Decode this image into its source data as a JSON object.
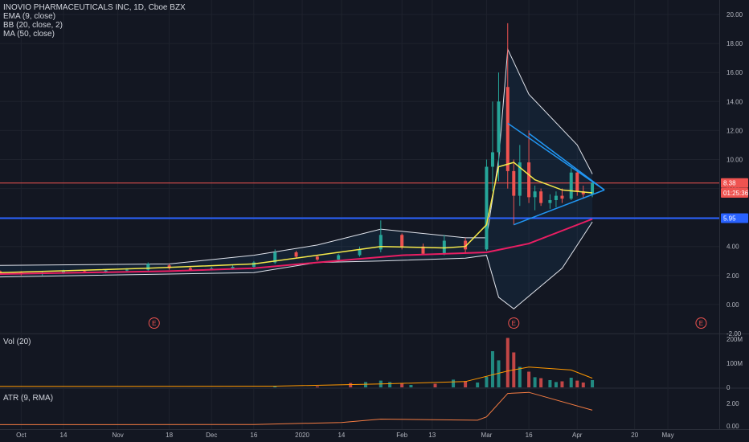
{
  "main_pane": {
    "title": "INOVIO PHARMACEUTICALS INC, 1D, Cboe BZX",
    "indicators": [
      "EMA (9, close)",
      "BB (20, close, 2)",
      "MA (50, close)"
    ],
    "price_badges": [
      {
        "label": "8.38",
        "value": 8.38,
        "color": "#ef5350"
      },
      {
        "label": "01:25:36",
        "value": 7.7,
        "color": "#ef5350"
      },
      {
        "label": "5.95",
        "value": 5.95,
        "color": "#2962ff"
      }
    ],
    "earnings_marker": "E"
  },
  "volume_pane": {
    "title": "Vol (20)"
  },
  "atr_pane": {
    "title": "ATR (9, RMA)"
  },
  "chart_data": [
    {
      "type": "candlestick",
      "title": "INOVIO PHARMACEUTICALS INC, 1D, Cboe BZX",
      "y_ticks": [
        "20.00",
        "18.00",
        "16.00",
        "14.00",
        "12.00",
        "10.00",
        "8.00",
        "6.00",
        "4.00",
        "2.00",
        "0.00",
        "-2.00"
      ],
      "ylim": [
        -2,
        21
      ],
      "x_ticks": [
        "Oct",
        "14",
        "Nov",
        "18",
        "Dec",
        "16",
        "2020",
        "14",
        "Feb",
        "13",
        "Mar",
        "16",
        "Apr",
        "20",
        "May"
      ],
      "x_dates": [
        "2019-09-30",
        "2019-10-14",
        "2019-11-01",
        "2019-11-18",
        "2019-12-02",
        "2019-12-16",
        "2020-01-01",
        "2020-01-14",
        "2020-02-03",
        "2020-02-13",
        "2020-03-02",
        "2020-03-16",
        "2020-04-01",
        "2020-04-20",
        "2020-05-01"
      ],
      "xlim": [
        "2019-09-23",
        "2020-05-18"
      ],
      "candles": [
        [
          "2019-09-23",
          2.3,
          2.35,
          2.15,
          2.2
        ],
        [
          "2019-09-30",
          2.2,
          2.3,
          2.0,
          2.1
        ],
        [
          "2019-10-07",
          2.1,
          2.25,
          2.0,
          2.2
        ],
        [
          "2019-10-14",
          2.2,
          2.4,
          2.1,
          2.3
        ],
        [
          "2019-10-21",
          2.3,
          2.4,
          2.2,
          2.25
        ],
        [
          "2019-10-28",
          2.25,
          2.4,
          2.15,
          2.35
        ],
        [
          "2019-11-04",
          2.35,
          2.5,
          2.25,
          2.4
        ],
        [
          "2019-11-11",
          2.4,
          2.9,
          2.3,
          2.8
        ],
        [
          "2019-11-18",
          2.7,
          2.8,
          2.4,
          2.5
        ],
        [
          "2019-11-25",
          2.5,
          2.6,
          2.3,
          2.4
        ],
        [
          "2019-12-02",
          2.4,
          2.6,
          2.35,
          2.5
        ],
        [
          "2019-12-09",
          2.5,
          2.7,
          2.4,
          2.6
        ],
        [
          "2019-12-16",
          2.6,
          3.0,
          2.5,
          2.9
        ],
        [
          "2019-12-23",
          2.9,
          3.8,
          2.8,
          3.6
        ],
        [
          "2019-12-30",
          3.6,
          3.7,
          3.2,
          3.3
        ],
        [
          "2020-01-06",
          3.3,
          3.4,
          3.0,
          3.1
        ],
        [
          "2020-01-13",
          3.1,
          3.5,
          3.0,
          3.4
        ],
        [
          "2020-01-20",
          3.4,
          4.0,
          3.3,
          3.8
        ],
        [
          "2020-01-27",
          3.8,
          5.8,
          3.6,
          4.8
        ],
        [
          "2020-02-03",
          4.8,
          4.9,
          3.8,
          4.0
        ],
        [
          "2020-02-10",
          4.0,
          4.2,
          3.4,
          3.5
        ],
        [
          "2020-02-17",
          3.5,
          4.8,
          3.4,
          4.4
        ],
        [
          "2020-02-24",
          4.4,
          4.6,
          3.5,
          3.8
        ],
        [
          "2020-03-02",
          3.8,
          10.0,
          3.7,
          9.5
        ],
        [
          "2020-03-04",
          9.5,
          14.0,
          7.8,
          10.5
        ],
        [
          "2020-03-06",
          10.5,
          16.0,
          8.5,
          14.0
        ],
        [
          "2020-03-09",
          15.0,
          19.4,
          8.0,
          9.2
        ],
        [
          "2020-03-11",
          9.2,
          10.0,
          5.5,
          7.5
        ],
        [
          "2020-03-13",
          7.5,
          11.0,
          6.8,
          9.8
        ],
        [
          "2020-03-16",
          9.8,
          12.0,
          7.0,
          7.4
        ],
        [
          "2020-03-18",
          7.4,
          8.2,
          6.5,
          7.8
        ],
        [
          "2020-03-20",
          7.8,
          8.0,
          6.8,
          7.0
        ],
        [
          "2020-03-23",
          7.0,
          7.6,
          6.6,
          7.2
        ],
        [
          "2020-03-25",
          7.2,
          7.8,
          6.7,
          7.5
        ],
        [
          "2020-03-27",
          7.5,
          8.0,
          7.0,
          7.3
        ],
        [
          "2020-03-30",
          7.3,
          9.4,
          7.2,
          9.1
        ],
        [
          "2020-04-01",
          9.1,
          9.3,
          7.5,
          7.8
        ],
        [
          "2020-04-03",
          7.8,
          8.2,
          7.3,
          7.6
        ],
        [
          "2020-04-06",
          7.6,
          8.5,
          7.4,
          8.38
        ]
      ],
      "ema_9": [
        [
          "2019-09-23",
          2.2
        ],
        [
          "2019-11-11",
          2.5
        ],
        [
          "2019-12-16",
          2.8
        ],
        [
          "2020-01-06",
          3.4
        ],
        [
          "2020-01-27",
          4.0
        ],
        [
          "2020-02-17",
          3.9
        ],
        [
          "2020-02-24",
          4.0
        ],
        [
          "2020-03-02",
          5.5
        ],
        [
          "2020-03-06",
          9.5
        ],
        [
          "2020-03-11",
          9.8
        ],
        [
          "2020-03-18",
          8.6
        ],
        [
          "2020-03-27",
          7.9
        ],
        [
          "2020-04-06",
          7.7
        ]
      ],
      "bb_upper": [
        [
          "2019-09-23",
          2.7
        ],
        [
          "2019-11-18",
          2.8
        ],
        [
          "2019-12-16",
          3.4
        ],
        [
          "2020-01-06",
          4.1
        ],
        [
          "2020-01-27",
          5.2
        ],
        [
          "2020-02-24",
          4.6
        ],
        [
          "2020-03-02",
          4.6
        ],
        [
          "2020-03-06",
          10.0
        ],
        [
          "2020-03-09",
          17.6
        ],
        [
          "2020-03-16",
          14.5
        ],
        [
          "2020-04-01",
          11.0
        ],
        [
          "2020-04-06",
          9.0
        ]
      ],
      "bb_lower": [
        [
          "2019-09-23",
          1.9
        ],
        [
          "2019-11-18",
          2.1
        ],
        [
          "2019-12-16",
          2.2
        ],
        [
          "2020-01-06",
          2.9
        ],
        [
          "2020-01-27",
          3.0
        ],
        [
          "2020-02-24",
          3.2
        ],
        [
          "2020-03-02",
          3.4
        ],
        [
          "2020-03-06",
          0.5
        ],
        [
          "2020-03-11",
          -0.3
        ],
        [
          "2020-03-27",
          2.5
        ],
        [
          "2020-04-06",
          5.7
        ]
      ],
      "ma_50": [
        [
          "2019-09-23",
          2.1
        ],
        [
          "2019-11-18",
          2.3
        ],
        [
          "2019-12-16",
          2.5
        ],
        [
          "2020-01-06",
          2.9
        ],
        [
          "2020-02-03",
          3.4
        ],
        [
          "2020-03-02",
          3.6
        ],
        [
          "2020-03-16",
          4.2
        ],
        [
          "2020-04-06",
          5.9
        ]
      ],
      "horizontal_lines": [
        {
          "value": 8.38,
          "color": "#ef5350"
        },
        {
          "value": 5.95,
          "color": "#2962ff"
        }
      ],
      "trend_lines": [
        {
          "from": [
            "2020-03-09",
            12.5
          ],
          "to": [
            "2020-04-10",
            7.9
          ]
        },
        {
          "from": [
            "2020-03-16",
            11.8
          ],
          "to": [
            "2020-04-10",
            7.9
          ]
        },
        {
          "from": [
            "2020-03-11",
            5.5
          ],
          "to": [
            "2020-04-10",
            7.9
          ]
        }
      ],
      "earnings_dates": [
        "2019-11-13",
        "2020-03-11",
        "2020-05-12"
      ]
    },
    {
      "type": "bar",
      "title": "Vol (20)",
      "y_ticks": [
        "200M",
        "100M",
        "0"
      ],
      "ylim": [
        0,
        220
      ],
      "unit": "M",
      "bars": [
        [
          "2019-12-23",
          6
        ],
        [
          "2020-01-06",
          4
        ],
        [
          "2020-01-17",
          18
        ],
        [
          "2020-01-22",
          22
        ],
        [
          "2020-01-27",
          28
        ],
        [
          "2020-01-30",
          22
        ],
        [
          "2020-02-03",
          16
        ],
        [
          "2020-02-06",
          10
        ],
        [
          "2020-02-14",
          15
        ],
        [
          "2020-02-20",
          32
        ],
        [
          "2020-02-24",
          26
        ],
        [
          "2020-02-28",
          20
        ],
        [
          "2020-03-02",
          44
        ],
        [
          "2020-03-04",
          150
        ],
        [
          "2020-03-06",
          112
        ],
        [
          "2020-03-09",
          205
        ],
        [
          "2020-03-11",
          145
        ],
        [
          "2020-03-13",
          85
        ],
        [
          "2020-03-16",
          65
        ],
        [
          "2020-03-18",
          42
        ],
        [
          "2020-03-20",
          38
        ],
        [
          "2020-03-23",
          30
        ],
        [
          "2020-03-25",
          22
        ],
        [
          "2020-03-27",
          25
        ],
        [
          "2020-03-30",
          40
        ],
        [
          "2020-04-01",
          28
        ],
        [
          "2020-04-03",
          20
        ],
        [
          "2020-04-06",
          30
        ]
      ],
      "volume_ma": [
        [
          "2019-09-23",
          4
        ],
        [
          "2019-12-23",
          5
        ],
        [
          "2020-01-27",
          14
        ],
        [
          "2020-02-24",
          24
        ],
        [
          "2020-03-09",
          68
        ],
        [
          "2020-03-16",
          84
        ],
        [
          "2020-03-30",
          72
        ],
        [
          "2020-04-06",
          38
        ]
      ]
    },
    {
      "type": "line",
      "title": "ATR (9, RMA)",
      "y_ticks": [
        "2.00",
        "0.00"
      ],
      "ylim": [
        -0.3,
        3.3
      ],
      "values": [
        [
          "2019-09-23",
          0.1
        ],
        [
          "2019-12-16",
          0.12
        ],
        [
          "2020-01-14",
          0.3
        ],
        [
          "2020-01-27",
          0.6
        ],
        [
          "2020-02-13",
          0.55
        ],
        [
          "2020-02-28",
          0.5
        ],
        [
          "2020-03-02",
          0.8
        ],
        [
          "2020-03-09",
          2.9
        ],
        [
          "2020-03-16",
          3.0
        ],
        [
          "2020-04-06",
          1.4
        ]
      ]
    }
  ]
}
